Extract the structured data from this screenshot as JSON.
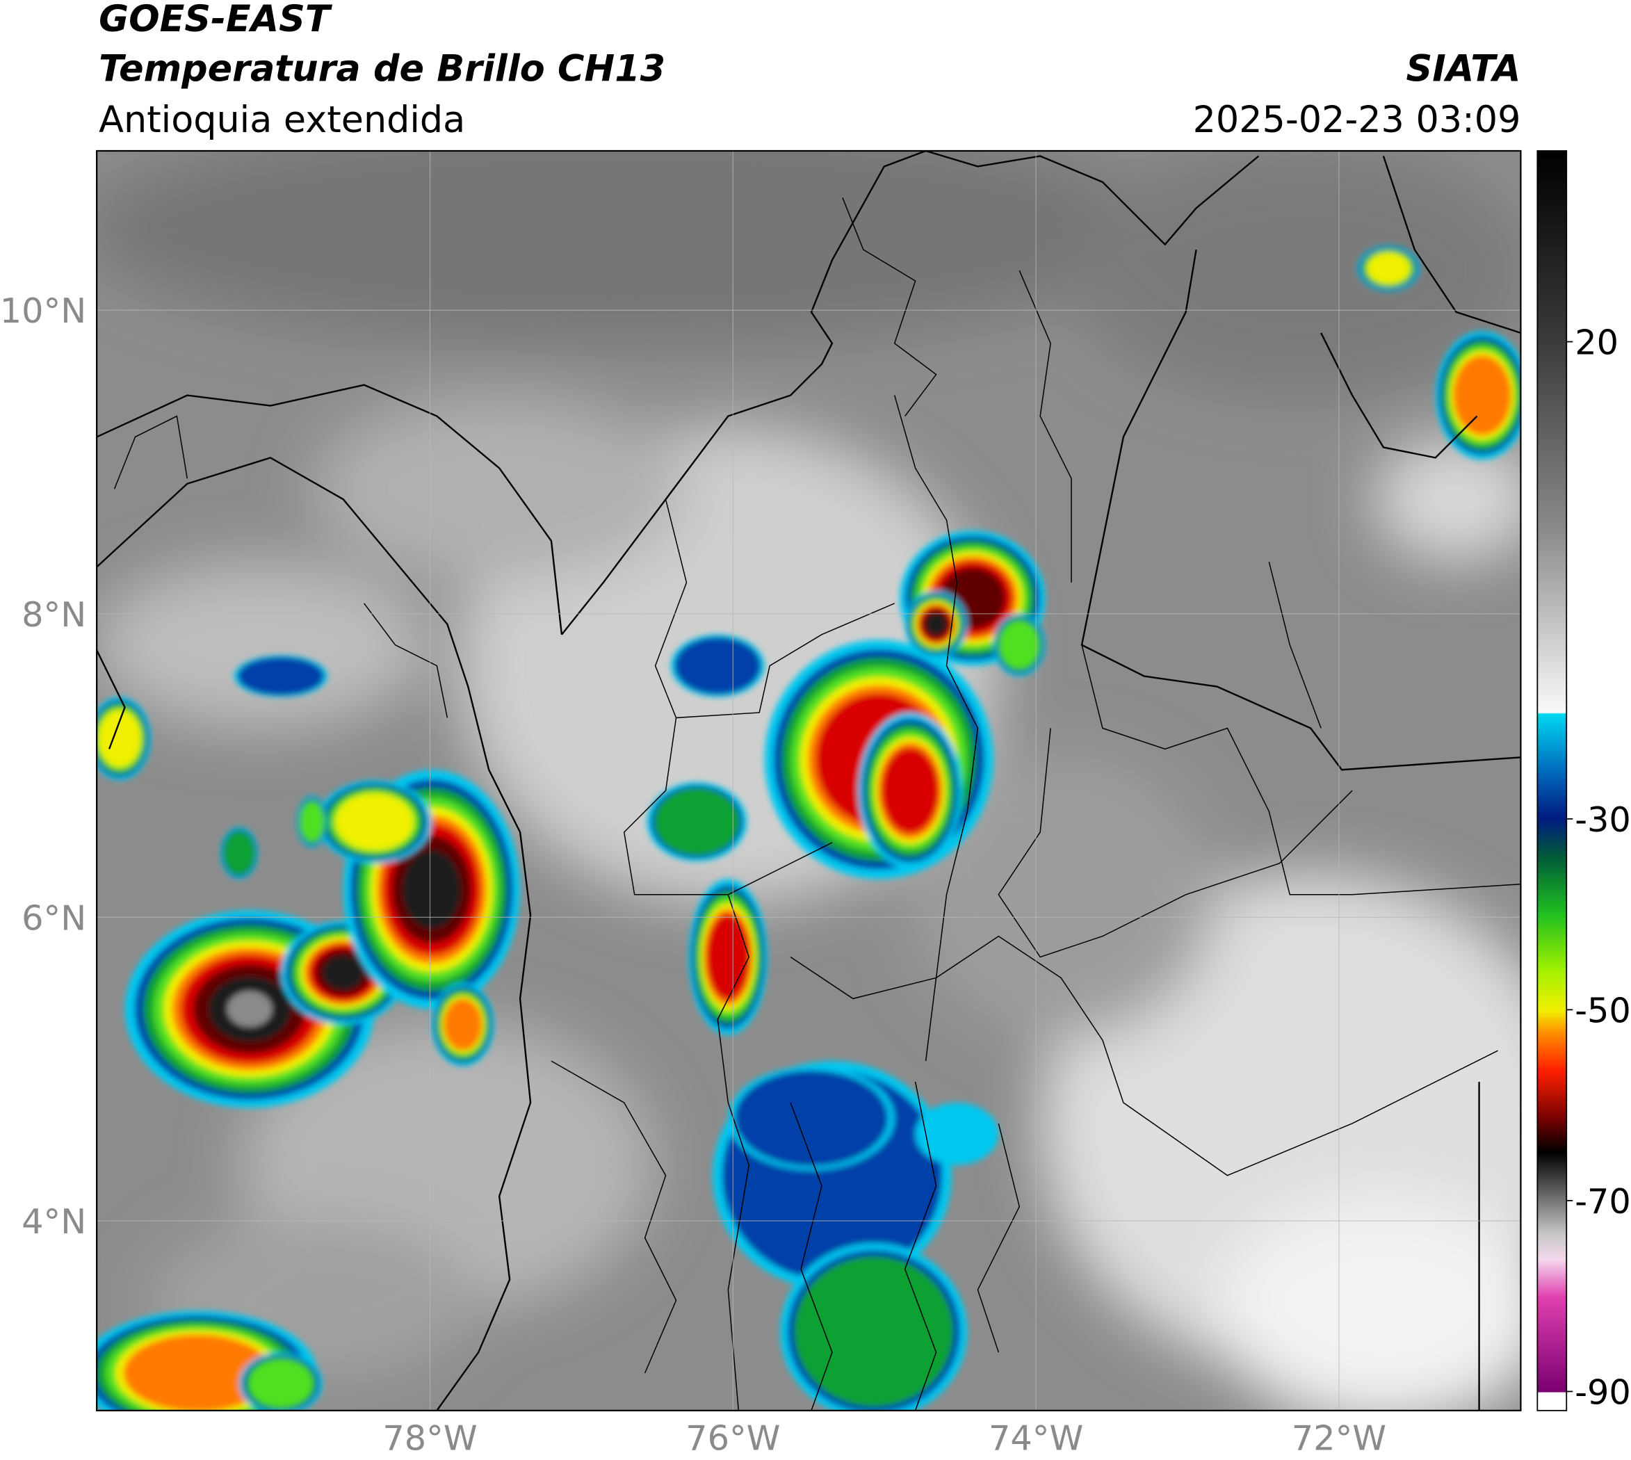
{
  "header": {
    "title": "GOES-EAST",
    "subtitle": "Temperatura de Brillo CH13",
    "region": "Antioquia extendida",
    "source": "SIATA",
    "datetime": "2025-02-23 03:09"
  },
  "map": {
    "xlim": [
      -80.2,
      -70.8
    ],
    "ylim": [
      2.75,
      11.05
    ],
    "xticks": [
      {
        "value": -78,
        "label": "78°W"
      },
      {
        "value": -76,
        "label": "76°W"
      },
      {
        "value": -74,
        "label": "74°W"
      },
      {
        "value": -72,
        "label": "72°W"
      }
    ],
    "yticks": [
      {
        "value": 10,
        "label": "10°N"
      },
      {
        "value": 8,
        "label": "8°N"
      },
      {
        "value": 6,
        "label": "6°N"
      },
      {
        "value": 4,
        "label": "4°N"
      }
    ],
    "grid": true
  },
  "colorbar": {
    "clim": [
      -92,
      40
    ],
    "ticks": [
      20,
      -30,
      -50,
      -70,
      -90
    ]
  }
}
